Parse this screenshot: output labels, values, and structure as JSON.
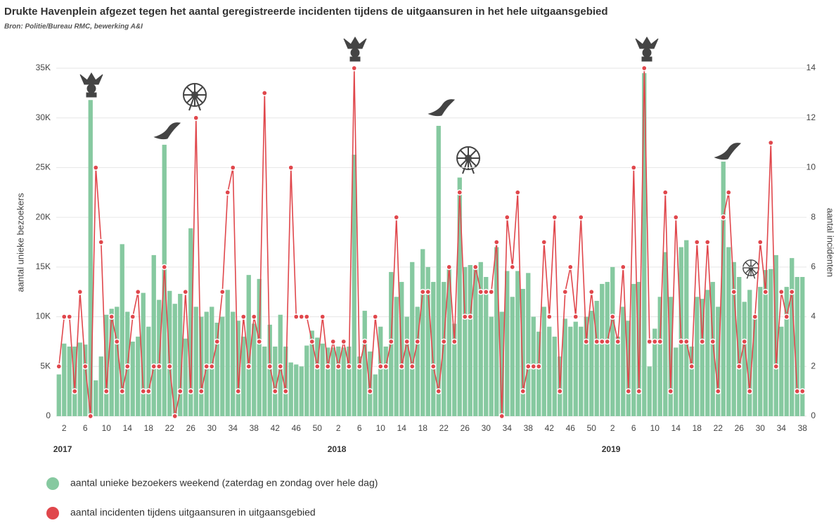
{
  "chart_data": {
    "type": "bar_line",
    "title": "Drukte Havenplein afgezet tegen het aantal geregistreerde incidenten tijdens de uitgaansuren in het hele uitgaansgebied",
    "subtitle": "Bron: Politie/Bureau RMC, bewerking A&I",
    "y_label": "aantal unieke bezoekers",
    "y2_label": "aantal incidenten",
    "year_labels": [
      "2017",
      "2018",
      "2019"
    ],
    "categories": [
      null,
      "2",
      null,
      null,
      null,
      "6",
      null,
      null,
      null,
      "10",
      null,
      null,
      null,
      "14",
      null,
      null,
      null,
      "18",
      null,
      null,
      null,
      "22",
      null,
      null,
      null,
      "26",
      null,
      null,
      null,
      "30",
      null,
      null,
      null,
      "34",
      null,
      null,
      null,
      "38",
      null,
      null,
      null,
      "42",
      null,
      null,
      null,
      "46",
      null,
      null,
      null,
      "50",
      null,
      null,
      null,
      "2",
      null,
      null,
      null,
      "6",
      null,
      null,
      null,
      "10",
      null,
      null,
      null,
      "14",
      null,
      null,
      null,
      "18",
      null,
      null,
      null,
      "22",
      null,
      null,
      null,
      "26",
      null,
      null,
      null,
      "30",
      null,
      null,
      null,
      "34",
      null,
      null,
      null,
      "38",
      null,
      null,
      null,
      "42",
      null,
      null,
      null,
      "46",
      null,
      null,
      null,
      "50",
      null,
      null,
      null,
      "2",
      null,
      null,
      null,
      "6",
      null,
      null,
      null,
      "10",
      null,
      null,
      null,
      "14",
      null,
      null,
      null,
      "18",
      null,
      null,
      null,
      "22",
      null,
      null,
      null,
      "26",
      null,
      null,
      null,
      "30",
      null,
      null,
      null,
      "34",
      null,
      null,
      null,
      "38"
    ],
    "series": [
      {
        "name": "aantal unieke bezoekers weekend (zaterdag en zondag over hele dag)",
        "color": "#86c9a0",
        "kind": "bar",
        "values": [
          4200,
          7300,
          7000,
          7000,
          7400,
          7200,
          31800,
          3600,
          6000,
          10200,
          10800,
          11000,
          17300,
          10500,
          7500,
          8000,
          12400,
          9000,
          16200,
          11700,
          27300,
          12600,
          11300,
          12300,
          7800,
          18900,
          11000,
          10000,
          10500,
          11000,
          9400,
          10000,
          12700,
          10500,
          9600,
          8000,
          14200,
          9300,
          13800,
          7000,
          9200,
          7000,
          10200,
          7000,
          5400,
          5200,
          5000,
          7100,
          8600,
          7900,
          7300,
          6900,
          6900,
          7000,
          6900,
          7000,
          26300,
          6000,
          10600,
          6500,
          4200,
          9000,
          7000,
          14500,
          12000,
          13500,
          10000,
          15500,
          11000,
          16800,
          15000,
          13500,
          29200,
          13500,
          15100,
          9300,
          24000,
          15000,
          15200,
          15000,
          15500,
          14000,
          10000,
          17000,
          10500,
          14600,
          12000,
          14600,
          12800,
          14400,
          10000,
          8500,
          11000,
          9000,
          8000,
          6000,
          9800,
          9000,
          9500,
          9000,
          10000,
          10600,
          11600,
          13300,
          13500,
          15000,
          8000,
          11000,
          9600,
          13300,
          13500,
          34500,
          5000,
          8800,
          12000,
          16500,
          12000,
          6900,
          17000,
          17700,
          7000,
          12000,
          11800,
          12700,
          13500,
          11000,
          25600,
          17000,
          15500,
          14000,
          11500,
          12700,
          10000,
          13000,
          14700,
          14800,
          16200,
          9000,
          13000,
          15900,
          14000,
          14000
        ]
      },
      {
        "name": "aantal incidenten tijdens uitgaansuren in uitgaansgebied",
        "color": "#e0474c",
        "kind": "line",
        "axis": "y2",
        "values": [
          2,
          4,
          4,
          1,
          5,
          2,
          0,
          10,
          7,
          1,
          4,
          3,
          1,
          2,
          4,
          5,
          1,
          1,
          2,
          2,
          6,
          2,
          0,
          1,
          5,
          1,
          12,
          1,
          2,
          2,
          3,
          5,
          9,
          10,
          1,
          4,
          2,
          4,
          3,
          13,
          2,
          1,
          2,
          1,
          10,
          4,
          4,
          4,
          3,
          2,
          4,
          2,
          3,
          2,
          3,
          2,
          14,
          2,
          3,
          1,
          4,
          2,
          2,
          3,
          8,
          2,
          3,
          2,
          3,
          5,
          5,
          2,
          1,
          3,
          6,
          3,
          9,
          4,
          4,
          6,
          5,
          5,
          5,
          7,
          0,
          8,
          6,
          9,
          1,
          2,
          2,
          2,
          7,
          4,
          8,
          1,
          5,
          6,
          4,
          8,
          3,
          5,
          3,
          3,
          3,
          4,
          3,
          6,
          1,
          10,
          1,
          14,
          3,
          3,
          3,
          9,
          1,
          8,
          3,
          3,
          2,
          7,
          3,
          7,
          3,
          1,
          8,
          9,
          5,
          2,
          3,
          1,
          4,
          7,
          5,
          11,
          2,
          5,
          4,
          5,
          1,
          1
        ]
      }
    ],
    "ylim": [
      0,
      35000
    ],
    "yticks": [
      0,
      {
        "value": 5000,
        "label": "5K"
      },
      {
        "value": 10000,
        "label": "10K"
      },
      {
        "value": 15000,
        "label": "15K"
      },
      {
        "value": 20000,
        "label": "20K"
      },
      {
        "value": 25000,
        "label": "25K"
      },
      {
        "value": 30000,
        "label": "30K"
      },
      {
        "value": 35000,
        "label": "35K"
      }
    ],
    "y2lim": [
      0,
      14
    ],
    "y2ticks": [
      0,
      2,
      4,
      6,
      8,
      10,
      12,
      14
    ],
    "grid": true
  }
}
